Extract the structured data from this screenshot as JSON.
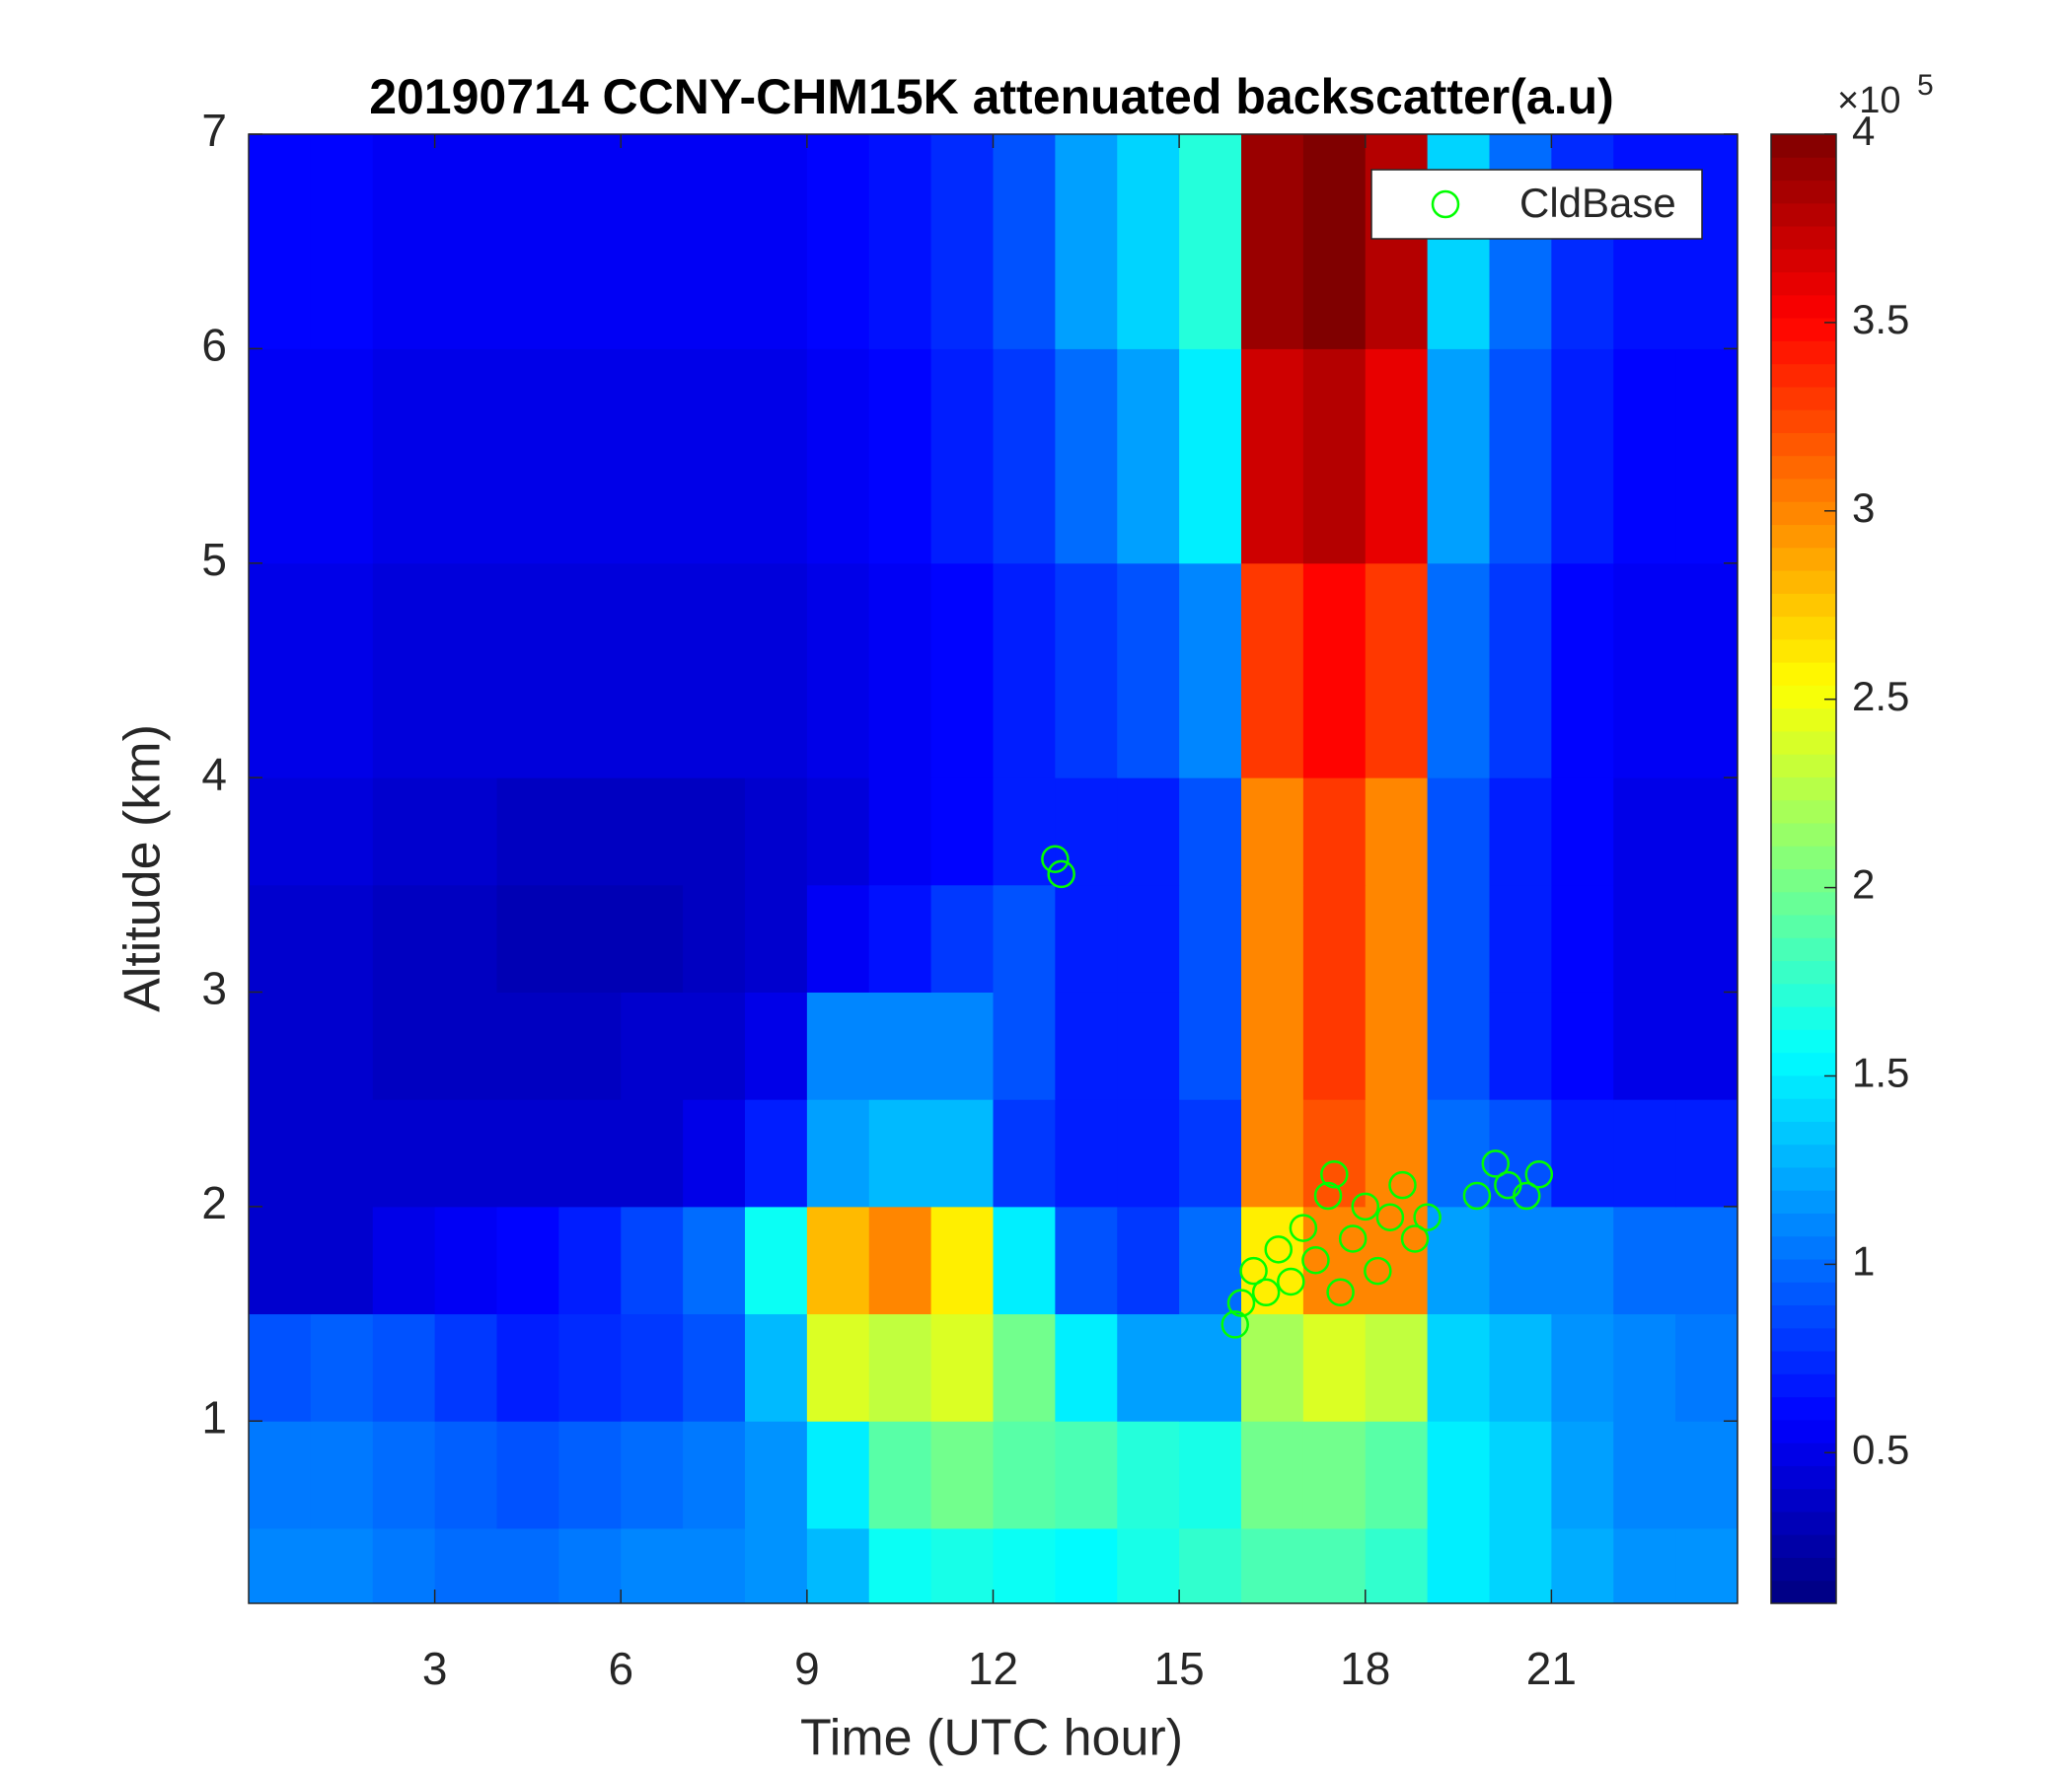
{
  "chart_data": {
    "type": "heatmap",
    "title": "20190714 CCNY-CHM15K attenuated backscatter(a.u)",
    "xlabel": "Time (UTC hour)",
    "ylabel": "Altitude (km)",
    "xlim": [
      0,
      24
    ],
    "ylim": [
      0.15,
      7
    ],
    "xticks": [
      3,
      6,
      9,
      12,
      15,
      18,
      21
    ],
    "yticks": [
      1,
      2,
      3,
      4,
      5,
      6,
      7
    ],
    "colormap": "jet",
    "clim": [
      10000,
      400000
    ],
    "colorbar_ticks": [
      {
        "value": 50000,
        "label": "0.5"
      },
      {
        "value": 100000,
        "label": "1"
      },
      {
        "value": 150000,
        "label": "1.5"
      },
      {
        "value": 200000,
        "label": "2"
      },
      {
        "value": 250000,
        "label": "2.5"
      },
      {
        "value": 300000,
        "label": "3"
      },
      {
        "value": 350000,
        "label": "3.5"
      },
      {
        "value": 400000,
        "label": "4"
      }
    ],
    "colorbar_multiplier": "×10",
    "colorbar_exponent": "5",
    "x_edges": [
      0,
      1,
      2,
      3,
      4,
      5,
      6,
      7,
      8,
      9,
      10,
      11,
      12,
      13,
      14,
      15,
      16,
      17,
      18,
      19,
      20,
      21,
      22,
      23,
      24
    ],
    "y_edges": [
      0.15,
      0.5,
      1,
      1.5,
      2,
      2.5,
      3,
      3.5,
      4,
      5,
      6,
      7
    ],
    "z": [
      [
        110000,
        110000,
        105000,
        100000,
        100000,
        105000,
        110000,
        110000,
        115000,
        130000,
        160000,
        165000,
        160000,
        155000,
        165000,
        175000,
        185000,
        185000,
        175000,
        150000,
        140000,
        125000,
        115000,
        115000
      ],
      [
        105000,
        105000,
        100000,
        95000,
        90000,
        95000,
        100000,
        105000,
        115000,
        150000,
        190000,
        200000,
        190000,
        185000,
        170000,
        165000,
        200000,
        200000,
        190000,
        150000,
        140000,
        120000,
        110000,
        110000
      ],
      [
        90000,
        95000,
        90000,
        80000,
        70000,
        75000,
        80000,
        90000,
        130000,
        240000,
        230000,
        240000,
        200000,
        150000,
        120000,
        120000,
        220000,
        240000,
        230000,
        140000,
        130000,
        115000,
        110000,
        105000
      ],
      [
        40000,
        40000,
        50000,
        55000,
        60000,
        70000,
        85000,
        100000,
        160000,
        280000,
        300000,
        260000,
        150000,
        90000,
        80000,
        100000,
        260000,
        300000,
        300000,
        120000,
        110000,
        110000,
        100000,
        100000
      ],
      [
        40000,
        40000,
        40000,
        40000,
        40000,
        40000,
        40000,
        50000,
        70000,
        120000,
        130000,
        130000,
        80000,
        70000,
        70000,
        80000,
        300000,
        320000,
        300000,
        100000,
        90000,
        70000,
        70000,
        70000
      ],
      [
        40000,
        40000,
        35000,
        35000,
        35000,
        35000,
        40000,
        40000,
        50000,
        110000,
        110000,
        110000,
        90000,
        70000,
        70000,
        90000,
        300000,
        330000,
        300000,
        90000,
        70000,
        60000,
        50000,
        50000
      ],
      [
        40000,
        40000,
        35000,
        35000,
        30000,
        30000,
        30000,
        35000,
        40000,
        55000,
        65000,
        80000,
        90000,
        70000,
        70000,
        90000,
        300000,
        330000,
        300000,
        90000,
        70000,
        60000,
        50000,
        50000
      ],
      [
        45000,
        45000,
        40000,
        40000,
        35000,
        35000,
        35000,
        35000,
        40000,
        45000,
        55000,
        60000,
        70000,
        70000,
        70000,
        90000,
        300000,
        330000,
        300000,
        90000,
        70000,
        60000,
        50000,
        50000
      ],
      [
        50000,
        50000,
        45000,
        45000,
        45000,
        45000,
        45000,
        45000,
        45000,
        50000,
        55000,
        60000,
        70000,
        80000,
        90000,
        110000,
        330000,
        350000,
        330000,
        100000,
        80000,
        60000,
        55000,
        55000
      ],
      [
        55000,
        55000,
        50000,
        50000,
        50000,
        50000,
        50000,
        50000,
        50000,
        55000,
        60000,
        70000,
        80000,
        100000,
        120000,
        150000,
        370000,
        380000,
        360000,
        120000,
        90000,
        70000,
        60000,
        60000
      ],
      [
        60000,
        60000,
        55000,
        55000,
        55000,
        55000,
        55000,
        55000,
        55000,
        60000,
        65000,
        75000,
        90000,
        120000,
        140000,
        170000,
        390000,
        400000,
        380000,
        140000,
        100000,
        75000,
        65000,
        65000
      ]
    ],
    "series": [
      {
        "name": "CldBase",
        "color": "#00ff00",
        "x": [
          13.0,
          13.1,
          15.9,
          16.0,
          16.2,
          16.4,
          16.6,
          16.8,
          17.0,
          17.2,
          17.4,
          17.5,
          17.6,
          17.8,
          18.0,
          18.2,
          18.4,
          18.6,
          18.8,
          19.0,
          19.8,
          20.1,
          20.3,
          20.6,
          20.8
        ],
        "y": [
          3.62,
          3.55,
          1.45,
          1.55,
          1.7,
          1.6,
          1.8,
          1.65,
          1.9,
          1.75,
          2.05,
          2.15,
          1.6,
          1.85,
          2.0,
          1.7,
          1.95,
          2.1,
          1.85,
          1.95,
          2.05,
          2.2,
          2.1,
          2.05,
          2.15
        ]
      }
    ],
    "legend": "northeast"
  }
}
